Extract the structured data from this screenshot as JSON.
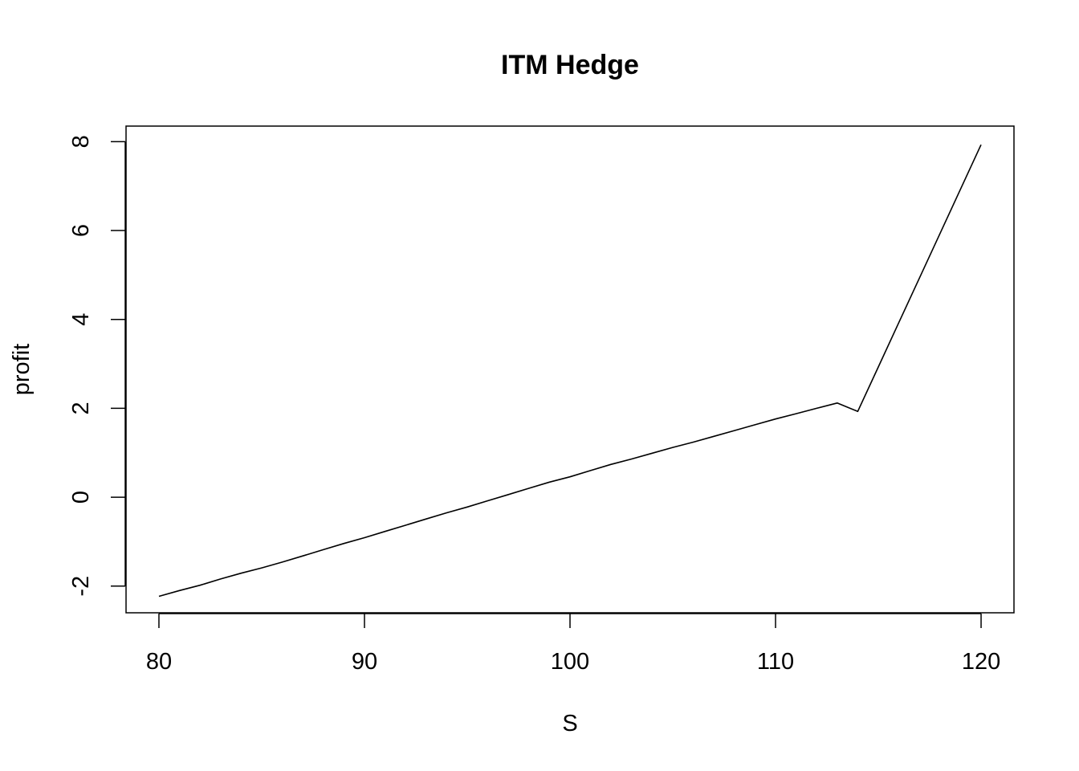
{
  "chart_data": {
    "type": "line",
    "title": "ITM Hedge",
    "xlabel": "S",
    "ylabel": "profit",
    "xlim": [
      78.4,
      121.6
    ],
    "ylim": [
      -2.6,
      8.35
    ],
    "x_ticks": [
      80,
      90,
      100,
      110,
      120
    ],
    "y_ticks": [
      -2,
      0,
      2,
      4,
      6,
      8
    ],
    "grid": false,
    "legend": "none",
    "line_color": "#000000",
    "series": [
      {
        "x": [
          80,
          81,
          82,
          83,
          84,
          85,
          86,
          87,
          88,
          89,
          90,
          91,
          92,
          93,
          94,
          95,
          96,
          97,
          98,
          99,
          100,
          101,
          102,
          103,
          104,
          105,
          106,
          107,
          108,
          109,
          110,
          111,
          112,
          113,
          114,
          115,
          116,
          117,
          118,
          119,
          120
        ],
        "y": [
          -2.23,
          -2.1,
          -1.98,
          -1.84,
          -1.71,
          -1.59,
          -1.46,
          -1.32,
          -1.18,
          -1.04,
          -0.91,
          -0.77,
          -0.63,
          -0.49,
          -0.35,
          -0.22,
          -0.08,
          0.06,
          0.2,
          0.34,
          0.46,
          0.6,
          0.74,
          0.86,
          0.99,
          1.12,
          1.24,
          1.37,
          1.5,
          1.63,
          1.76,
          1.88,
          2.0,
          2.12,
          1.93,
          2.93,
          3.93,
          4.93,
          5.93,
          6.93,
          7.93
        ]
      }
    ]
  }
}
